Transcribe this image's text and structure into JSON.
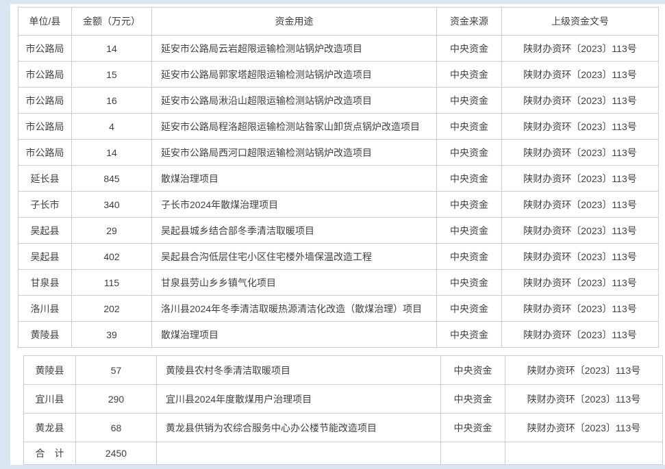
{
  "page": {
    "background_color": "#d9e7f3",
    "panel_color": "#ffffff",
    "border_color": "#cccccc",
    "text_color": "#404040"
  },
  "table": {
    "headers": [
      "单位/县",
      "金额（万元）",
      "资金用途",
      "资金来源",
      "上级资金文号"
    ],
    "section1": {
      "rows": [
        [
          "市公路局",
          "14",
          "延安市公路局云岩超限运输检测站锅炉改造项目",
          "中央资金",
          "陕财办资环〔2023〕113号"
        ],
        [
          "市公路局",
          "15",
          "延安市公路局郭家塔超限运输检测站锅炉改造项目",
          "中央资金",
          "陕财办资环〔2023〕113号"
        ],
        [
          "市公路局",
          "16",
          "延安市公路局湫沿山超限运输检测站锅炉改造项目",
          "中央资金",
          "陕财办资环〔2023〕113号"
        ],
        [
          "市公路局",
          "4",
          "延安市公路局程洛超限运输检测站昝家山卸货点锅炉改造项目",
          "中央资金",
          "陕财办资环〔2023〕113号"
        ],
        [
          "市公路局",
          "14",
          "延安市公路局西河口超限运输检测站锅炉改造项目",
          "中央资金",
          "陕财办资环〔2023〕113号"
        ],
        [
          "延长县",
          "845",
          "散煤治理项目",
          "中央资金",
          "陕财办资环〔2023〕113号"
        ],
        [
          "子长市",
          "340",
          "子长市2024年散煤治理项目",
          "中央资金",
          "陕财办资环〔2023〕113号"
        ],
        [
          "吴起县",
          "29",
          "吴起县城乡结合部冬季清洁取暖项目",
          "中央资金",
          "陕财办资环〔2023〕113号"
        ],
        [
          "吴起县",
          "402",
          "吴起县合沟低层住宅小区住宅楼外墙保温改造工程",
          "中央资金",
          "陕财办资环〔2023〕113号"
        ],
        [
          "甘泉县",
          "115",
          "甘泉县劳山乡乡镇气化项目",
          "中央资金",
          "陕财办资环〔2023〕113号"
        ],
        [
          "洛川县",
          "202",
          "洛川县2024年冬季清洁取暖热源清洁化改造（散煤治理）项目",
          "中央资金",
          "陕财办资环〔2023〕113号"
        ],
        [
          "黄陵县",
          "39",
          "散煤治理项目",
          "中央资金",
          "陕财办资环〔2023〕113号"
        ]
      ]
    },
    "section2": {
      "rows": [
        [
          "黄陵县",
          "57",
          "黄陵县农村冬季清洁取暖项目",
          "中央资金",
          "陕财办资环〔2023〕113号"
        ],
        [
          "宜川县",
          "290",
          "宜川县2024年度散煤用户治理项目",
          "中央资金",
          "陕财办资环〔2023〕113号"
        ],
        [
          "黄龙县",
          "68",
          "黄龙县供销为农综合服务中心办公楼节能改造项目",
          "中央资金",
          "陕财办资环〔2023〕113号"
        ],
        [
          "合　计",
          "2450",
          "",
          "",
          ""
        ]
      ]
    }
  }
}
